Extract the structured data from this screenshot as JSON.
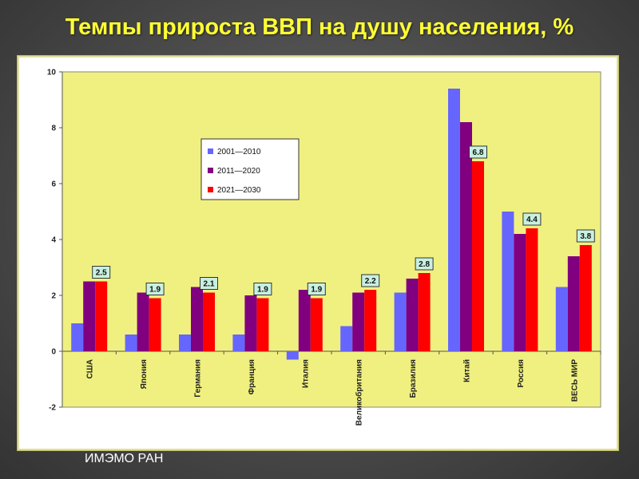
{
  "slide": {
    "title": "Темпы прироста ВВП на душу населения, %",
    "source": "ИМЭМО РАН"
  },
  "chart_data": {
    "type": "bar",
    "title": "Темпы прироста ВВП на душу населения, %",
    "categories": [
      "США",
      "Япония",
      "Германия",
      "Франция",
      "Италия",
      "Великобритания",
      "Бразилия",
      "Китай",
      "Россия",
      "ВЕСЬ МИР"
    ],
    "series": [
      {
        "name": "2001—2010",
        "color": "#6666ff",
        "values": [
          1.0,
          0.6,
          0.6,
          0.6,
          -0.3,
          0.9,
          2.1,
          9.4,
          5.0,
          2.3
        ]
      },
      {
        "name": "2011—2020",
        "color": "#800080",
        "values": [
          2.5,
          2.1,
          2.3,
          2.0,
          2.2,
          2.1,
          2.6,
          8.2,
          4.2,
          3.4
        ]
      },
      {
        "name": "2021—2030",
        "color": "#ff0000",
        "values": [
          2.5,
          1.9,
          2.1,
          1.9,
          1.9,
          2.2,
          2.8,
          6.8,
          4.4,
          3.8
        ]
      }
    ],
    "data_labels": [
      "2.5",
      "1.9",
      "2.1",
      "1.9",
      "1.9",
      "2.2",
      "2.8",
      "6.8",
      "4.4",
      "3.8"
    ],
    "ylim": [
      -2,
      10
    ],
    "yticks": [
      "-2",
      "0",
      "2",
      "4",
      "6",
      "8",
      "10"
    ],
    "plot_background": "#f0f080",
    "data_label_background": "#c8f0e0",
    "legend_position": "upper-left-inside",
    "grid": false
  }
}
